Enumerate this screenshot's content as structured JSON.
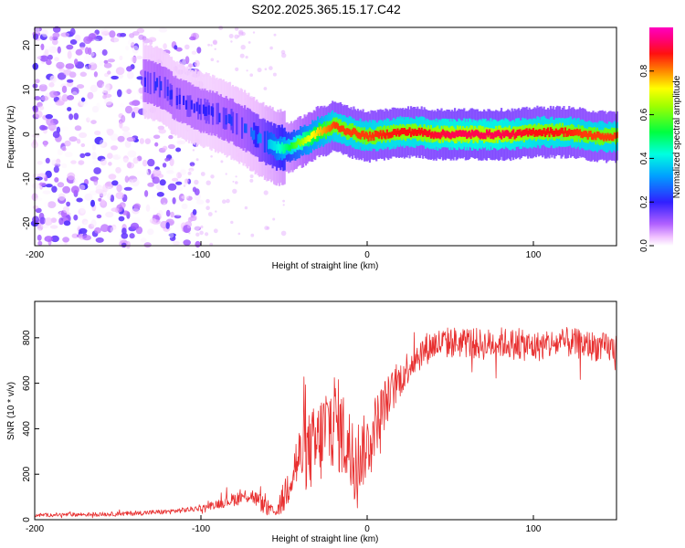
{
  "title": "S202.2025.365.15.17.C42",
  "chart_data": [
    {
      "type": "heatmap",
      "name": "spectrogram",
      "xlabel": "Height of straight line (km)",
      "ylabel": "Frequency (Hz)",
      "xlim": [
        -200,
        150
      ],
      "ylim": [
        -25,
        24
      ],
      "xticks": [
        -200,
        -100,
        0,
        100
      ],
      "xtick_labels": [
        "-200",
        "-100",
        "0",
        "100"
      ],
      "yticks": [
        -20,
        -10,
        0,
        10,
        20
      ],
      "ytick_labels": [
        "-20",
        "-10",
        "0",
        "10",
        "20"
      ],
      "colorbar": {
        "label": "Normalized spectral amplitude",
        "range": [
          0,
          1
        ],
        "ticks": [
          0.0,
          0.2,
          0.4,
          0.6,
          0.8
        ],
        "tick_labels": [
          "0.0",
          "0.2",
          "0.4",
          "0.6",
          "0.8"
        ],
        "colormap": "rainbow: white, magenta, blue, cyan, green, yellow, red, magenta"
      },
      "ridge": {
        "x": [
          -135,
          -125,
          -115,
          -105,
          -95,
          -85,
          -75,
          -65,
          -55,
          -48,
          -42,
          -36,
          -30,
          -25,
          -20,
          -15,
          -10,
          -5,
          0,
          10,
          20,
          30,
          40,
          50,
          60,
          70,
          80,
          90,
          100,
          110,
          120,
          130,
          140,
          150
        ],
        "y": [
          12,
          11,
          8,
          6,
          5,
          3.5,
          1.5,
          -1,
          -3,
          -3,
          -2,
          -1,
          0.5,
          1,
          2,
          1,
          0.5,
          0,
          -0.5,
          0,
          0.5,
          0.5,
          0,
          0,
          0,
          0,
          0,
          0,
          0.5,
          0.5,
          0.5,
          0,
          -0.5,
          -0.5
        ],
        "amplitude": [
          0.2,
          0.22,
          0.2,
          0.2,
          0.2,
          0.22,
          0.24,
          0.3,
          0.4,
          0.5,
          0.6,
          0.7,
          0.75,
          0.8,
          0.85,
          0.85,
          0.85,
          0.85,
          0.85,
          0.87,
          0.88,
          0.88,
          0.9,
          0.92,
          0.92,
          0.92,
          0.92,
          0.9,
          0.88,
          0.88,
          0.87,
          0.85,
          0.85,
          0.85
        ]
      },
      "noise_region": {
        "x_range": [
          -200,
          -100
        ],
        "y_range": [
          -25,
          24
        ],
        "amplitude_range": [
          0.0,
          0.18
        ]
      }
    },
    {
      "type": "line",
      "name": "snr",
      "xlabel": "Height of straight line (km)",
      "ylabel": "SNR (10 * v/v)",
      "xlim": [
        -200,
        150
      ],
      "ylim": [
        0,
        960
      ],
      "xticks": [
        -200,
        -100,
        0,
        100
      ],
      "xtick_labels": [
        "-200",
        "-100",
        "0",
        "100"
      ],
      "yticks": [
        0,
        200,
        400,
        600,
        800
      ],
      "ytick_labels": [
        "0",
        "200",
        "400",
        "600",
        "800"
      ],
      "color": "#e83030",
      "trend": {
        "x": [
          -200,
          -150,
          -120,
          -100,
          -90,
          -80,
          -70,
          -65,
          -60,
          -55,
          -50,
          -45,
          -40,
          -35,
          -30,
          -25,
          -20,
          -15,
          -10,
          -5,
          0,
          5,
          10,
          15,
          20,
          25,
          30,
          35,
          40,
          50,
          60,
          70,
          80,
          90,
          100,
          110,
          120,
          130,
          140,
          150
        ],
        "y": [
          20,
          25,
          35,
          50,
          70,
          90,
          110,
          80,
          50,
          30,
          100,
          220,
          280,
          300,
          320,
          400,
          450,
          380,
          300,
          280,
          320,
          420,
          500,
          560,
          620,
          680,
          720,
          750,
          770,
          780,
          780,
          770,
          780,
          770,
          760,
          770,
          780,
          770,
          760,
          750
        ]
      },
      "noise_amplitude": {
        "x": [
          -200,
          -100,
          -80,
          -60,
          -55,
          -50,
          -40,
          -30,
          -20,
          0,
          20,
          40,
          150
        ],
        "y": [
          8,
          12,
          30,
          40,
          10,
          80,
          150,
          200,
          220,
          150,
          80,
          70,
          65
        ]
      }
    }
  ]
}
